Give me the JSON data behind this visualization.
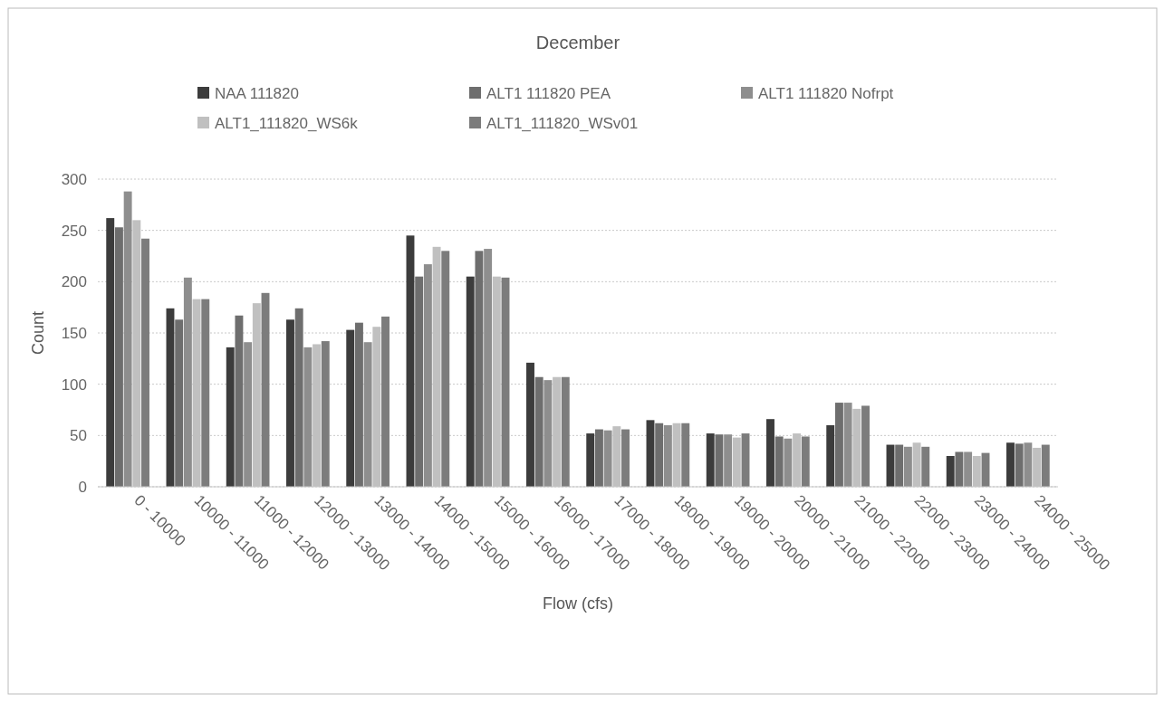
{
  "chart_data": {
    "type": "bar",
    "title": "December",
    "xlabel": "Flow (cfs)",
    "ylabel": "Count",
    "categories": [
      "0 - 10000",
      "10000 - 11000",
      "11000 - 12000",
      "12000 - 13000",
      "13000 - 14000",
      "14000 - 15000",
      "15000 - 16000",
      "16000 - 17000",
      "17000 - 18000",
      "18000 - 19000",
      "19000 - 20000",
      "20000 - 21000",
      "21000 - 22000",
      "22000 - 23000",
      "23000 - 24000",
      "24000 - 25000"
    ],
    "series": [
      {
        "name": "NAA 111820",
        "color": "#3c3c3c",
        "values": [
          262,
          174,
          136,
          163,
          153,
          245,
          205,
          121,
          52,
          65,
          52,
          66,
          60,
          41,
          30,
          43
        ]
      },
      {
        "name": "ALT1 111820 PEA",
        "color": "#6e6e6e",
        "values": [
          253,
          163,
          167,
          174,
          160,
          205,
          230,
          107,
          56,
          62,
          51,
          49,
          82,
          41,
          34,
          42
        ]
      },
      {
        "name": "ALT1 111820 Nofrpt",
        "color": "#8e8e8e",
        "values": [
          288,
          204,
          141,
          136,
          141,
          217,
          232,
          104,
          55,
          60,
          51,
          47,
          82,
          39,
          34,
          43
        ]
      },
      {
        "name": "ALT1_111820_WS6k",
        "color": "#c0c0c0",
        "values": [
          260,
          183,
          179,
          139,
          156,
          234,
          205,
          107,
          59,
          62,
          48,
          52,
          76,
          43,
          30,
          38
        ]
      },
      {
        "name": "ALT1_111820_WSv01",
        "color": "#7c7c7c",
        "values": [
          242,
          183,
          189,
          142,
          166,
          230,
          204,
          107,
          56,
          62,
          52,
          49,
          79,
          39,
          33,
          41
        ]
      }
    ],
    "ylim": [
      0,
      300
    ],
    "yticks": [
      0,
      50,
      100,
      150,
      200,
      250,
      300
    ],
    "grid": "y",
    "legend": "top"
  }
}
